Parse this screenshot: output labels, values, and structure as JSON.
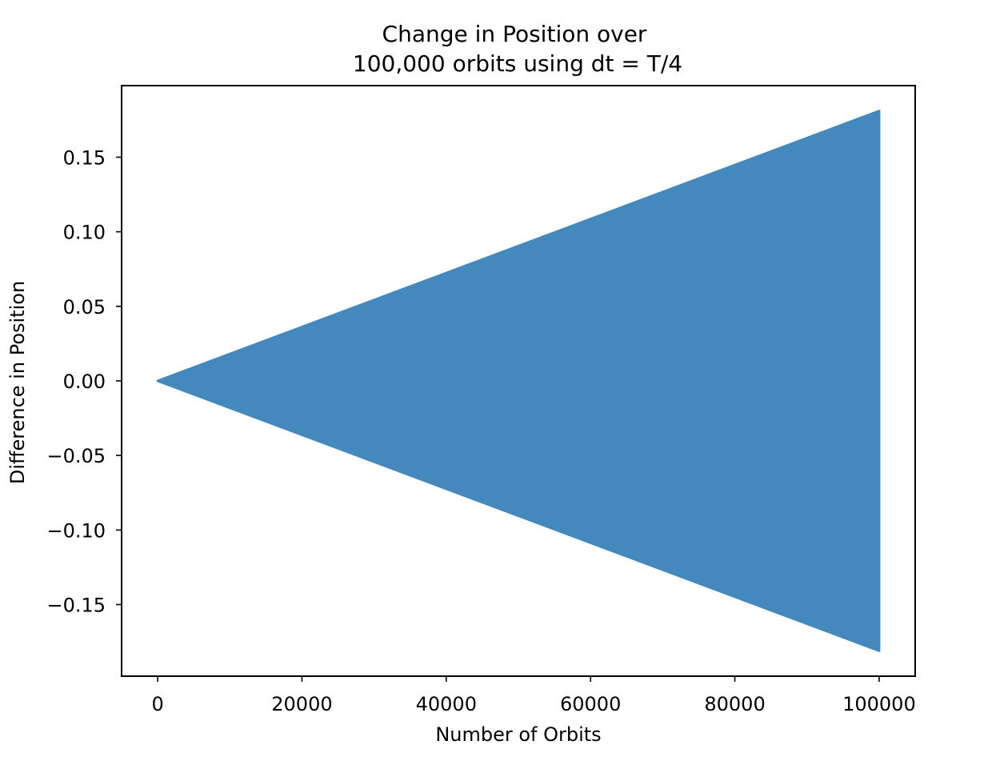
{
  "chart_data": {
    "type": "area",
    "title_lines": [
      "Change in Position over",
      "100,000 orbits using dt = T/4"
    ],
    "xlabel": "Number of Orbits",
    "ylabel": "Difference in Position",
    "xlim": [
      -5000,
      105000
    ],
    "ylim": [
      -0.198,
      0.198
    ],
    "x_ticks": [
      0,
      20000,
      40000,
      60000,
      80000,
      100000
    ],
    "x_tick_labels": [
      "0",
      "20000",
      "40000",
      "60000",
      "80000",
      "100000"
    ],
    "y_ticks": [
      0.15,
      0.1,
      0.05,
      0.0,
      -0.05,
      -0.1,
      -0.15
    ],
    "y_tick_labels": [
      "0.15",
      "0.10",
      "0.05",
      "0.00",
      "−0.05",
      "−0.10",
      "−0.15"
    ],
    "grid": false,
    "series": [
      {
        "color": "#4389bd",
        "x": [
          0,
          100000
        ],
        "upper": [
          0.0,
          0.181
        ],
        "lower": [
          0.0,
          -0.181
        ]
      }
    ]
  }
}
